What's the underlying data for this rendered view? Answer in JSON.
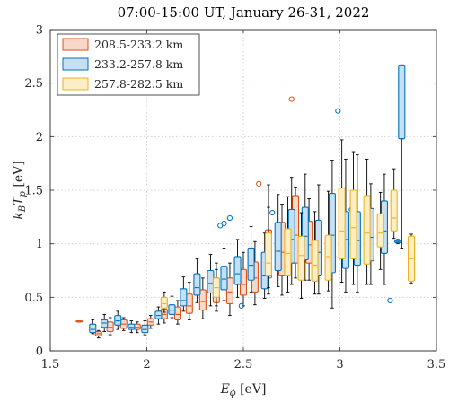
{
  "chart_data": {
    "type": "box",
    "title": "07:00-15:00 UT, January 26-31, 2022",
    "xlabel": "E",
    "xlabel_sub": "ϕ",
    "xlabel_unit": " [eV]",
    "ylabel": "k",
    "ylabel_sub1": "B",
    "ylabel_mid": "T",
    "ylabel_sub2": "p",
    "ylabel_unit": " [eV]",
    "xlim": [
      1.5,
      3.5
    ],
    "ylim": [
      0,
      3
    ],
    "xticks": [
      1.5,
      2,
      2.5,
      3,
      3.5
    ],
    "xtick_labels": [
      "1.5",
      "2",
      "2.5",
      "3",
      "3.5"
    ],
    "yticks": [
      0,
      0.5,
      1,
      1.5,
      2,
      2.5,
      3
    ],
    "ytick_labels": [
      "0",
      "0.5",
      "1",
      "1.5",
      "2",
      "2.5",
      "3"
    ],
    "grid": true,
    "legend_position": "top-left",
    "series": [
      {
        "name": "208.5-233.2 km",
        "edge": "#D95319",
        "fill": "#F8D9C9",
        "boxes": [
          {
            "x": 1.65,
            "min": 0.27,
            "q1": 0.27,
            "med": 0.27,
            "q3": 0.28,
            "max": 0.28
          },
          {
            "x": 1.75,
            "min": 0.12,
            "q1": 0.14,
            "med": 0.16,
            "q3": 0.18,
            "max": 0.19
          },
          {
            "x": 1.81,
            "min": 0.15,
            "q1": 0.18,
            "med": 0.22,
            "q3": 0.27,
            "max": 0.31
          },
          {
            "x": 1.88,
            "min": 0.19,
            "q1": 0.21,
            "med": 0.25,
            "q3": 0.29,
            "max": 0.31
          },
          {
            "x": 1.95,
            "min": 0.17,
            "q1": 0.2,
            "med": 0.22,
            "q3": 0.25,
            "max": 0.27
          },
          {
            "x": 2.02,
            "min": 0.21,
            "q1": 0.24,
            "med": 0.27,
            "q3": 0.3,
            "max": 0.33
          },
          {
            "x": 2.09,
            "min": 0.26,
            "q1": 0.3,
            "med": 0.34,
            "q3": 0.39,
            "max": 0.43
          },
          {
            "x": 2.16,
            "min": 0.25,
            "q1": 0.29,
            "med": 0.34,
            "q3": 0.41,
            "max": 0.47
          },
          {
            "x": 2.22,
            "min": 0.29,
            "q1": 0.35,
            "med": 0.42,
            "q3": 0.53,
            "max": 0.64
          },
          {
            "x": 2.29,
            "min": 0.3,
            "q1": 0.38,
            "med": 0.46,
            "q3": 0.57,
            "max": 0.68
          },
          {
            "x": 2.36,
            "min": 0.37,
            "q1": 0.45,
            "med": 0.55,
            "q3": 0.68,
            "max": 0.82
          },
          {
            "x": 2.43,
            "min": 0.33,
            "q1": 0.44,
            "med": 0.55,
            "q3": 0.68,
            "max": 0.82
          },
          {
            "x": 2.5,
            "min": 0.42,
            "q1": 0.52,
            "med": 0.62,
            "q3": 0.76,
            "max": 0.92
          },
          {
            "x": 2.56,
            "min": 0.43,
            "q1": 0.55,
            "med": 0.68,
            "q3": 0.83,
            "max": 1.02
          },
          {
            "x": 2.63,
            "min": 0.53,
            "q1": 0.68,
            "med": 0.85,
            "q3": 1.13,
            "max": 1.55
          },
          {
            "x": 2.7,
            "min": 0.52,
            "q1": 0.7,
            "med": 0.92,
            "q3": 1.2,
            "max": 1.37
          },
          {
            "x": 2.77,
            "min": 0.68,
            "q1": 0.82,
            "med": 1.08,
            "q3": 1.45,
            "max": 1.53
          },
          {
            "x": 2.84,
            "min": 0.66,
            "q1": 0.82,
            "med": 0.99,
            "q3": 1.21,
            "max": 1.42
          }
        ],
        "outliers": [
          [
            2.58,
            1.56
          ],
          [
            2.75,
            2.35
          ]
        ]
      },
      {
        "name": "233.2-257.8 km",
        "edge": "#0072BD",
        "fill": "#C6DFF2",
        "boxes": [
          {
            "x": 1.72,
            "min": 0.16,
            "q1": 0.17,
            "med": 0.2,
            "q3": 0.25,
            "max": 0.29
          },
          {
            "x": 1.78,
            "min": 0.18,
            "q1": 0.22,
            "med": 0.26,
            "q3": 0.29,
            "max": 0.34
          },
          {
            "x": 1.85,
            "min": 0.2,
            "q1": 0.24,
            "med": 0.28,
            "q3": 0.33,
            "max": 0.37
          },
          {
            "x": 1.92,
            "min": 0.17,
            "q1": 0.2,
            "med": 0.22,
            "q3": 0.25,
            "max": 0.28
          },
          {
            "x": 1.99,
            "min": 0.15,
            "q1": 0.17,
            "med": 0.2,
            "q3": 0.24,
            "max": 0.28
          },
          {
            "x": 2.06,
            "min": 0.25,
            "q1": 0.3,
            "med": 0.33,
            "q3": 0.37,
            "max": 0.41
          },
          {
            "x": 2.13,
            "min": 0.31,
            "q1": 0.34,
            "med": 0.38,
            "q3": 0.43,
            "max": 0.51
          },
          {
            "x": 2.19,
            "min": 0.37,
            "q1": 0.42,
            "med": 0.47,
            "q3": 0.58,
            "max": 0.69
          },
          {
            "x": 2.26,
            "min": 0.45,
            "q1": 0.52,
            "med": 0.59,
            "q3": 0.72,
            "max": 0.86
          },
          {
            "x": 2.33,
            "min": 0.42,
            "q1": 0.54,
            "med": 0.63,
            "q3": 0.75,
            "max": 0.9
          },
          {
            "x": 2.4,
            "min": 0.47,
            "q1": 0.57,
            "med": 0.67,
            "q3": 0.79,
            "max": 0.96
          },
          {
            "x": 2.47,
            "min": 0.5,
            "q1": 0.62,
            "med": 0.72,
            "q3": 0.88,
            "max": 1.04
          },
          {
            "x": 2.54,
            "min": 0.55,
            "q1": 0.66,
            "med": 0.8,
            "q3": 0.96,
            "max": 1.16
          },
          {
            "x": 2.61,
            "min": 0.49,
            "q1": 0.58,
            "med": 0.7,
            "q3": 0.92,
            "max": 1.1
          },
          {
            "x": 2.68,
            "min": 0.6,
            "q1": 0.75,
            "med": 0.93,
            "q3": 1.2,
            "max": 1.46
          },
          {
            "x": 2.75,
            "min": 0.62,
            "q1": 0.82,
            "med": 1.04,
            "q3": 1.32,
            "max": 1.62
          },
          {
            "x": 2.82,
            "min": 0.66,
            "q1": 0.85,
            "med": 1.07,
            "q3": 1.34,
            "max": 1.65
          },
          {
            "x": 2.89,
            "min": 0.53,
            "q1": 0.7,
            "med": 0.92,
            "q3": 1.22,
            "max": 1.55
          },
          {
            "x": 2.96,
            "min": 0.4,
            "q1": 0.73,
            "med": 1.08,
            "q3": 1.47,
            "max": 1.78
          },
          {
            "x": 3.03,
            "min": 0.55,
            "q1": 0.77,
            "med": 1.04,
            "q3": 1.3,
            "max": 1.79
          },
          {
            "x": 3.09,
            "min": 0.55,
            "q1": 0.8,
            "med": 1.03,
            "q3": 1.3,
            "max": 1.83
          },
          {
            "x": 3.16,
            "min": 0.62,
            "q1": 0.84,
            "med": 1.06,
            "q3": 1.33,
            "max": 1.56
          },
          {
            "x": 3.23,
            "min": 0.62,
            "q1": 0.91,
            "med": 1.12,
            "q3": 1.4,
            "max": 1.65
          },
          {
            "x": 3.3,
            "min": 1.0,
            "q1": 1.01,
            "med": 1.02,
            "q3": 1.03,
            "max": 1.04
          },
          {
            "x": 3.32,
            "min": 0.96,
            "q1": 1.98,
            "med": 1.98,
            "q3": 2.67,
            "max": 2.67
          }
        ],
        "outliers": [
          [
            2.38,
            1.17
          ],
          [
            2.4,
            1.19
          ],
          [
            2.43,
            1.24
          ],
          [
            2.49,
            0.42
          ],
          [
            2.65,
            1.29
          ],
          [
            2.99,
            2.24
          ],
          [
            3.06,
            1.32
          ],
          [
            3.26,
            0.47
          ]
        ]
      },
      {
        "name": "257.8-282.5 km",
        "edge": "#EDB120",
        "fill": "#FCEFC7",
        "boxes": [
          {
            "x": 2.09,
            "min": 0.36,
            "q1": 0.4,
            "med": 0.44,
            "q3": 0.5,
            "max": 0.55
          },
          {
            "x": 2.36,
            "min": 0.42,
            "q1": 0.5,
            "med": 0.59,
            "q3": 0.68,
            "max": 0.76
          },
          {
            "x": 2.63,
            "min": 0.59,
            "q1": 0.7,
            "med": 0.82,
            "q3": 1.1,
            "max": 1.34
          },
          {
            "x": 2.73,
            "min": 0.55,
            "q1": 0.7,
            "med": 0.91,
            "q3": 1.14,
            "max": 1.44
          },
          {
            "x": 2.8,
            "min": 0.49,
            "q1": 0.66,
            "med": 0.89,
            "q3": 1.07,
            "max": 1.29
          },
          {
            "x": 2.87,
            "min": 0.53,
            "q1": 0.65,
            "med": 0.8,
            "q3": 1.03,
            "max": 1.3
          },
          {
            "x": 2.94,
            "min": 0.56,
            "q1": 0.66,
            "med": 0.88,
            "q3": 1.08,
            "max": 1.49
          },
          {
            "x": 3.01,
            "min": 0.64,
            "q1": 0.86,
            "med": 1.12,
            "q3": 1.52,
            "max": 1.97
          },
          {
            "x": 3.07,
            "min": 0.62,
            "q1": 0.86,
            "med": 1.15,
            "q3": 1.5,
            "max": 1.86
          },
          {
            "x": 3.14,
            "min": 0.62,
            "q1": 0.81,
            "med": 1.1,
            "q3": 1.45,
            "max": 1.79
          },
          {
            "x": 3.21,
            "min": 0.76,
            "q1": 0.97,
            "med": 1.1,
            "q3": 1.28,
            "max": 1.48
          },
          {
            "x": 3.28,
            "min": 1.05,
            "q1": 1.12,
            "med": 1.24,
            "q3": 1.5,
            "max": 1.7
          },
          {
            "x": 3.37,
            "min": 0.63,
            "q1": 0.65,
            "med": 0.86,
            "q3": 1.07,
            "max": 1.09
          }
        ],
        "outliers": []
      }
    ]
  }
}
